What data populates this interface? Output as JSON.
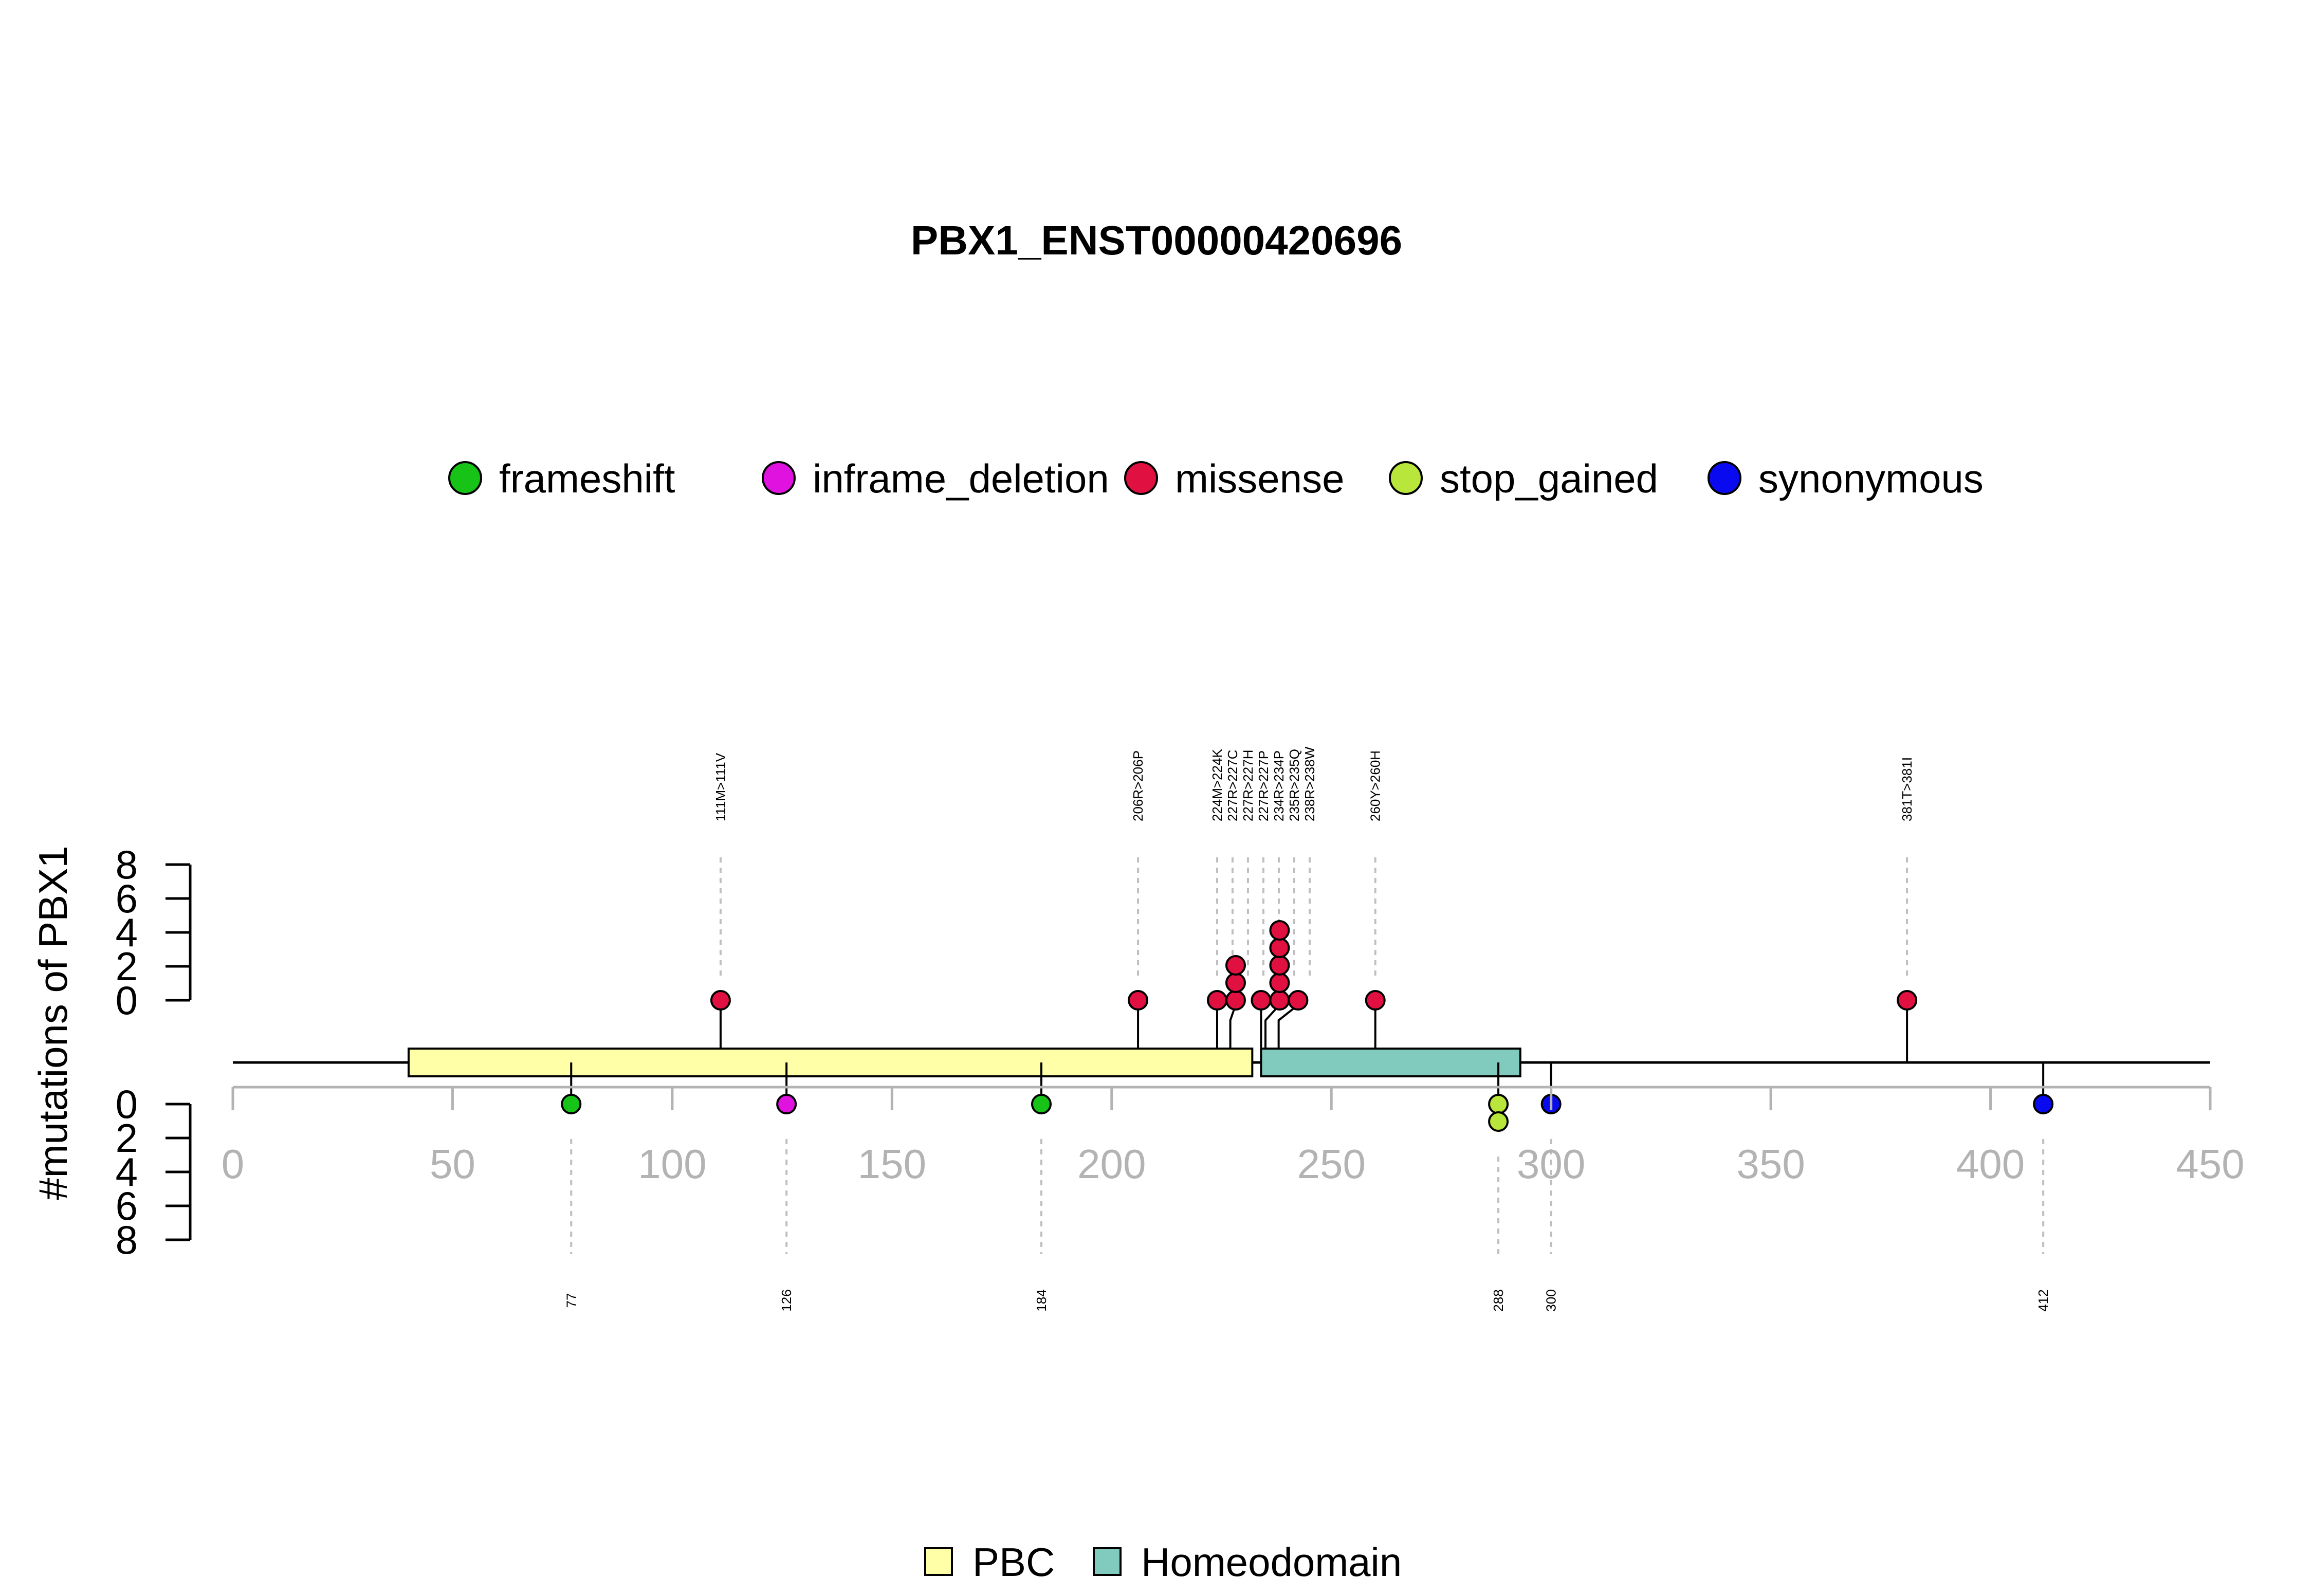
{
  "chart_data": {
    "type": "lollipop",
    "title": "PBX1_ENST00000420696",
    "ylabel": "#mutations of PBX1",
    "xlim": [
      0,
      450
    ],
    "x_ticks": [
      0,
      50,
      100,
      150,
      200,
      250,
      300,
      350,
      400,
      450
    ],
    "y_ticks_top": [
      0,
      2,
      4,
      6,
      8
    ],
    "y_ticks_bottom": [
      0,
      2,
      4,
      6,
      8
    ],
    "protein_length": 450,
    "mutation_legend": [
      {
        "name": "frameshift",
        "color": "#18c318"
      },
      {
        "name": "inframe_deletion",
        "color": "#e012e0"
      },
      {
        "name": "missense",
        "color": "#e01040"
      },
      {
        "name": "stop_gained",
        "color": "#b8e63a"
      },
      {
        "name": "synonymous",
        "color": "#0a0af0"
      }
    ],
    "domains": [
      {
        "name": "PBC",
        "start": 40,
        "end": 232,
        "color": "#ffffa8"
      },
      {
        "name": "Homeodomain",
        "start": 234,
        "end": 293,
        "color": "#80cbbd"
      }
    ],
    "top_mutations": [
      {
        "pos": 111,
        "label": "111M>111V",
        "type": "missense",
        "count": 1
      },
      {
        "pos": 206,
        "label": "206R>206P",
        "type": "missense",
        "count": 1
      },
      {
        "pos": 224,
        "label": "224M>224K",
        "type": "missense",
        "count": 1
      },
      {
        "pos": 227,
        "label": "227R>227C",
        "type": "missense",
        "count": 1
      },
      {
        "pos": 227,
        "label": "227R>227H",
        "type": "missense",
        "count": 1
      },
      {
        "pos": 227,
        "label": "227R>227P",
        "type": "missense",
        "count": 1
      },
      {
        "pos": 234,
        "label": "234R>234P",
        "type": "missense",
        "count": 1
      },
      {
        "pos": 235,
        "label": "235R>235Q",
        "type": "missense",
        "count": 5
      },
      {
        "pos": 238,
        "label": "238R>238W",
        "type": "missense",
        "count": 1
      },
      {
        "pos": 260,
        "label": "260Y>260H",
        "type": "missense",
        "count": 1
      },
      {
        "pos": 381,
        "label": "381T>381I",
        "type": "missense",
        "count": 1
      }
    ],
    "bottom_mutations": [
      {
        "pos": 77,
        "label": "77",
        "type": "frameshift",
        "count": 1
      },
      {
        "pos": 126,
        "label": "126",
        "type": "inframe_deletion",
        "count": 1
      },
      {
        "pos": 184,
        "label": "184",
        "type": "frameshift",
        "count": 1
      },
      {
        "pos": 288,
        "label": "288",
        "type": "stop_gained",
        "count": 2
      },
      {
        "pos": 300,
        "label": "300",
        "type": "synonymous",
        "count": 1
      },
      {
        "pos": 412,
        "label": "412",
        "type": "synonymous",
        "count": 1
      }
    ]
  }
}
